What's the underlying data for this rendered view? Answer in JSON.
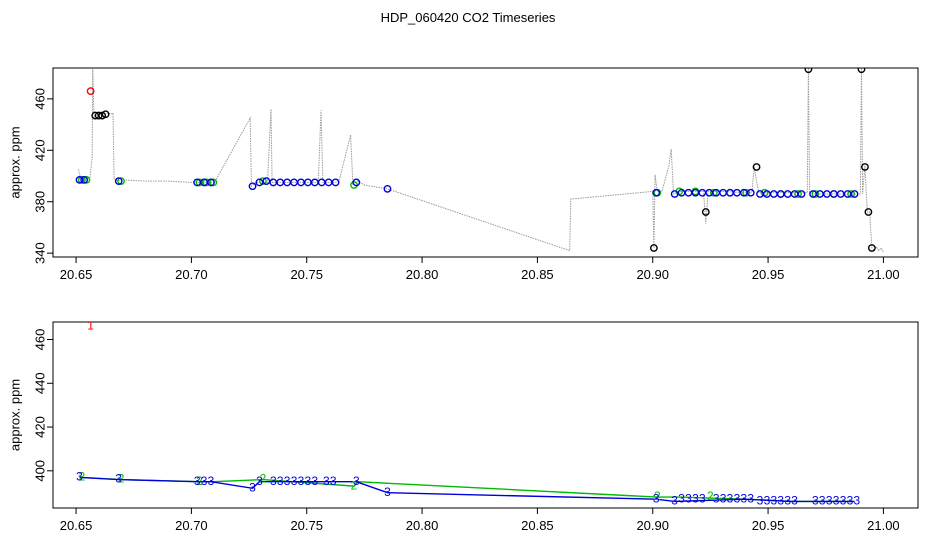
{
  "title": "HDP_060420  CO2 Timeseries",
  "chart_data": [
    {
      "type": "scatter",
      "ylabel": "approx. ppm",
      "xlabel": "",
      "xlim": [
        20.64,
        21.015
      ],
      "ylim": [
        337,
        484
      ],
      "xticks": [
        "20.65",
        "20.70",
        "20.75",
        "20.80",
        "20.85",
        "20.90",
        "20.95",
        "21.00"
      ],
      "yticks": [
        "340",
        "380",
        "420",
        "460"
      ],
      "grid": false,
      "raw_trace": {
        "name": "raw",
        "color": "#9a9a9a",
        "points": [
          [
            20.651,
            405
          ],
          [
            20.652,
            398
          ],
          [
            20.654,
            398
          ],
          [
            20.655,
            397
          ],
          [
            20.656,
            398
          ],
          [
            20.657,
            415
          ],
          [
            20.6572,
            484
          ],
          [
            20.6578,
            445
          ],
          [
            20.658,
            447
          ],
          [
            20.662,
            448
          ],
          [
            20.664,
            449
          ],
          [
            20.665,
            448
          ],
          [
            20.666,
            449
          ],
          [
            20.6665,
            398
          ],
          [
            20.668,
            396
          ],
          [
            20.67,
            397
          ],
          [
            20.68,
            396
          ],
          [
            20.69,
            396
          ],
          [
            20.7,
            395
          ],
          [
            20.71,
            395
          ],
          [
            20.7255,
            445
          ],
          [
            20.726,
            392
          ],
          [
            20.728,
            395
          ],
          [
            20.733,
            395
          ],
          [
            20.7345,
            452
          ],
          [
            20.735,
            395
          ],
          [
            20.745,
            395
          ],
          [
            20.755,
            395
          ],
          [
            20.7562,
            451
          ],
          [
            20.757,
            395
          ],
          [
            20.762,
            395
          ],
          [
            20.764,
            396
          ],
          [
            20.769,
            432
          ],
          [
            20.77,
            393
          ],
          [
            20.772,
            396
          ],
          [
            20.775,
            393
          ],
          [
            20.785,
            390
          ],
          [
            20.864,
            342
          ],
          [
            20.8645,
            382
          ],
          [
            20.9,
            388
          ],
          [
            20.9005,
            344
          ],
          [
            20.901,
            401
          ],
          [
            20.902,
            388
          ],
          [
            20.904,
            388
          ],
          [
            20.907,
            408
          ],
          [
            20.908,
            421
          ],
          [
            20.909,
            386
          ],
          [
            20.912,
            388
          ],
          [
            20.92,
            388
          ],
          [
            20.922,
            388
          ],
          [
            20.923,
            363
          ],
          [
            20.924,
            388
          ],
          [
            20.93,
            388
          ],
          [
            20.94,
            387
          ],
          [
            20.943,
            387
          ],
          [
            20.944,
            407
          ],
          [
            20.945,
            396
          ],
          [
            20.946,
            387
          ],
          [
            20.96,
            387
          ],
          [
            20.967,
            387
          ],
          [
            20.9675,
            484
          ],
          [
            20.968,
            386
          ],
          [
            20.98,
            386
          ],
          [
            20.988,
            386
          ],
          [
            20.99,
            386
          ],
          [
            20.9905,
            484
          ],
          [
            20.991,
            386
          ],
          [
            20.992,
            408
          ],
          [
            20.993,
            372
          ],
          [
            20.994,
            372
          ],
          [
            20.995,
            344
          ],
          [
            20.996,
            342
          ],
          [
            20.997,
            345
          ],
          [
            20.998,
            342
          ],
          [
            20.999,
            344
          ],
          [
            21.0,
            341
          ]
        ]
      },
      "series": [
        {
          "color": "#ff0000",
          "points": [
            [
              20.6563,
              466
            ]
          ]
        },
        {
          "color": "#000000",
          "points": [
            [
              20.6583,
              447
            ],
            [
              20.6598,
              447
            ],
            [
              20.6613,
              447
            ],
            [
              20.6628,
              448
            ],
            [
              20.9005,
              344
            ],
            [
              20.923,
              372
            ],
            [
              20.945,
              407
            ],
            [
              20.9675,
              483
            ],
            [
              20.9905,
              483
            ],
            [
              20.992,
              407
            ],
            [
              20.9935,
              372
            ],
            [
              20.995,
              344
            ]
          ]
        },
        {
          "color": "#00bb00",
          "points": [
            [
              20.6525,
              397
            ],
            [
              20.6545,
              397
            ],
            [
              20.6695,
              396
            ],
            [
              20.7035,
              395
            ],
            [
              20.7065,
              395
            ],
            [
              20.7095,
              395
            ],
            [
              20.731,
              396
            ],
            [
              20.7705,
              393
            ],
            [
              20.902,
              387
            ],
            [
              20.9115,
              388
            ],
            [
              20.9185,
              388
            ],
            [
              20.9265,
              387
            ],
            [
              20.9335,
              387
            ],
            [
              20.9405,
              387
            ],
            [
              20.9485,
              387
            ],
            [
              20.9555,
              386
            ],
            [
              20.963,
              386
            ],
            [
              20.9705,
              386
            ],
            [
              20.9785,
              386
            ],
            [
              20.986,
              386
            ]
          ]
        },
        {
          "color": "#0000dd",
          "points": [
            [
              20.6515,
              397
            ],
            [
              20.6535,
              397
            ],
            [
              20.6685,
              396
            ],
            [
              20.7025,
              395
            ],
            [
              20.7055,
              395
            ],
            [
              20.7085,
              395
            ],
            [
              20.7265,
              392
            ],
            [
              20.7295,
              395
            ],
            [
              20.7325,
              396
            ],
            [
              20.7355,
              395
            ],
            [
              20.7385,
              395
            ],
            [
              20.7415,
              395
            ],
            [
              20.7445,
              395
            ],
            [
              20.7475,
              395
            ],
            [
              20.7505,
              395
            ],
            [
              20.7535,
              395
            ],
            [
              20.7565,
              395
            ],
            [
              20.7595,
              395
            ],
            [
              20.7625,
              395
            ],
            [
              20.7715,
              395
            ],
            [
              20.785,
              390
            ],
            [
              20.9015,
              387
            ],
            [
              20.9095,
              386
            ],
            [
              20.9125,
              387
            ],
            [
              20.9155,
              387
            ],
            [
              20.9185,
              387
            ],
            [
              20.9215,
              387
            ],
            [
              20.9245,
              387
            ],
            [
              20.9275,
              387
            ],
            [
              20.9305,
              387
            ],
            [
              20.9335,
              387
            ],
            [
              20.9365,
              387
            ],
            [
              20.9395,
              387
            ],
            [
              20.9425,
              387
            ],
            [
              20.9465,
              386
            ],
            [
              20.9495,
              386
            ],
            [
              20.9525,
              386
            ],
            [
              20.9555,
              386
            ],
            [
              20.9585,
              386
            ],
            [
              20.9615,
              386
            ],
            [
              20.9645,
              386
            ],
            [
              20.9695,
              386
            ],
            [
              20.9725,
              386
            ],
            [
              20.9755,
              386
            ],
            [
              20.9785,
              386
            ],
            [
              20.9815,
              386
            ],
            [
              20.9845,
              386
            ],
            [
              20.9875,
              386
            ]
          ]
        }
      ]
    },
    {
      "type": "scatter",
      "ylabel": "approx. ppm",
      "xlabel": "",
      "xlim": [
        20.64,
        21.015
      ],
      "ylim": [
        383,
        468
      ],
      "xticks": [
        "20.65",
        "20.70",
        "20.75",
        "20.80",
        "20.85",
        "20.90",
        "20.95",
        "21.00"
      ],
      "yticks": [
        "400",
        "420",
        "440",
        "460"
      ],
      "grid": false,
      "lines": [
        {
          "color": "#00bb00",
          "points": [
            [
              20.6525,
              397
            ],
            [
              20.6695,
              396
            ],
            [
              20.7035,
              395
            ],
            [
              20.7095,
              395
            ],
            [
              20.731,
              396
            ],
            [
              20.7705,
              393
            ],
            [
              20.772,
              395
            ],
            [
              20.902,
              388
            ],
            [
              20.9115,
              388
            ],
            [
              20.94,
              387
            ],
            [
              20.96,
              386
            ],
            [
              20.986,
              386
            ]
          ]
        },
        {
          "color": "#0000dd",
          "points": [
            [
              20.6515,
              397
            ],
            [
              20.6685,
              396
            ],
            [
              20.7025,
              395
            ],
            [
              20.7085,
              395
            ],
            [
              20.7265,
              392
            ],
            [
              20.7295,
              395
            ],
            [
              20.7625,
              395
            ],
            [
              20.7715,
              395
            ],
            [
              20.785,
              390
            ],
            [
              20.9015,
              387
            ],
            [
              20.9095,
              386
            ],
            [
              20.94,
              387
            ],
            [
              20.96,
              386
            ],
            [
              20.9875,
              386
            ]
          ]
        }
      ],
      "labels": [
        {
          "text": "1",
          "color": "#ff0000",
          "x": 20.6563,
          "y": 466
        },
        {
          "text": "2",
          "color": "#00bb00",
          "x": 20.6525,
          "y": 397
        },
        {
          "text": "3",
          "color": "#0000dd",
          "x": 20.6515,
          "y": 397
        },
        {
          "text": "2",
          "color": "#00bb00",
          "x": 20.6695,
          "y": 396
        },
        {
          "text": "3",
          "color": "#0000dd",
          "x": 20.6685,
          "y": 396
        },
        {
          "text": "2",
          "color": "#00bb00",
          "x": 20.7035,
          "y": 395
        },
        {
          "text": "3",
          "color": "#0000dd",
          "x": 20.7025,
          "y": 395
        },
        {
          "text": "3",
          "color": "#0000dd",
          "x": 20.7055,
          "y": 395
        },
        {
          "text": "3",
          "color": "#0000dd",
          "x": 20.7085,
          "y": 395
        },
        {
          "text": "3",
          "color": "#0000dd",
          "x": 20.7265,
          "y": 392
        },
        {
          "text": "2",
          "color": "#00bb00",
          "x": 20.731,
          "y": 396
        },
        {
          "text": "3",
          "color": "#0000dd",
          "x": 20.7295,
          "y": 395
        },
        {
          "text": "3",
          "color": "#0000dd",
          "x": 20.7355,
          "y": 395
        },
        {
          "text": "3",
          "color": "#0000dd",
          "x": 20.7385,
          "y": 395
        },
        {
          "text": "3",
          "color": "#0000dd",
          "x": 20.7415,
          "y": 395
        },
        {
          "text": "3",
          "color": "#0000dd",
          "x": 20.7445,
          "y": 395
        },
        {
          "text": "3",
          "color": "#0000dd",
          "x": 20.7475,
          "y": 395
        },
        {
          "text": "3",
          "color": "#0000dd",
          "x": 20.7505,
          "y": 395
        },
        {
          "text": "3",
          "color": "#0000dd",
          "x": 20.7535,
          "y": 395
        },
        {
          "text": "3",
          "color": "#0000dd",
          "x": 20.7585,
          "y": 395
        },
        {
          "text": "3",
          "color": "#0000dd",
          "x": 20.7615,
          "y": 395
        },
        {
          "text": "2",
          "color": "#00bb00",
          "x": 20.7705,
          "y": 393
        },
        {
          "text": "3",
          "color": "#0000dd",
          "x": 20.7715,
          "y": 395
        },
        {
          "text": "3",
          "color": "#0000dd",
          "x": 20.785,
          "y": 390
        },
        {
          "text": "2",
          "color": "#00bb00",
          "x": 20.902,
          "y": 388
        },
        {
          "text": "3",
          "color": "#0000dd",
          "x": 20.9015,
          "y": 387
        },
        {
          "text": "3",
          "color": "#0000dd",
          "x": 20.9095,
          "y": 386
        },
        {
          "text": "3",
          "color": "#0000dd",
          "x": 20.9125,
          "y": 387
        },
        {
          "text": "3",
          "color": "#0000dd",
          "x": 20.9155,
          "y": 387
        },
        {
          "text": "3",
          "color": "#0000dd",
          "x": 20.9185,
          "y": 387
        },
        {
          "text": "3",
          "color": "#0000dd",
          "x": 20.9215,
          "y": 387
        },
        {
          "text": "2",
          "color": "#00bb00",
          "x": 20.925,
          "y": 388
        },
        {
          "text": "3",
          "color": "#0000dd",
          "x": 20.9275,
          "y": 387
        },
        {
          "text": "3",
          "color": "#0000dd",
          "x": 20.9305,
          "y": 387
        },
        {
          "text": "3",
          "color": "#0000dd",
          "x": 20.9335,
          "y": 387
        },
        {
          "text": "3",
          "color": "#0000dd",
          "x": 20.9365,
          "y": 387
        },
        {
          "text": "3",
          "color": "#0000dd",
          "x": 20.9395,
          "y": 387
        },
        {
          "text": "3",
          "color": "#0000dd",
          "x": 20.9425,
          "y": 387
        },
        {
          "text": "3",
          "color": "#0000dd",
          "x": 20.9465,
          "y": 386
        },
        {
          "text": "3",
          "color": "#0000dd",
          "x": 20.9495,
          "y": 386
        },
        {
          "text": "3",
          "color": "#0000dd",
          "x": 20.9525,
          "y": 386
        },
        {
          "text": "3",
          "color": "#0000dd",
          "x": 20.9555,
          "y": 386
        },
        {
          "text": "3",
          "color": "#0000dd",
          "x": 20.9585,
          "y": 386
        },
        {
          "text": "3",
          "color": "#0000dd",
          "x": 20.9615,
          "y": 386
        },
        {
          "text": "3",
          "color": "#0000dd",
          "x": 20.9705,
          "y": 386
        },
        {
          "text": "3",
          "color": "#0000dd",
          "x": 20.9735,
          "y": 386
        },
        {
          "text": "3",
          "color": "#0000dd",
          "x": 20.9765,
          "y": 386
        },
        {
          "text": "3",
          "color": "#0000dd",
          "x": 20.9795,
          "y": 386
        },
        {
          "text": "3",
          "color": "#0000dd",
          "x": 20.9825,
          "y": 386
        },
        {
          "text": "3",
          "color": "#0000dd",
          "x": 20.9855,
          "y": 386
        },
        {
          "text": "3",
          "color": "#0000dd",
          "x": 20.9885,
          "y": 386
        }
      ]
    }
  ]
}
